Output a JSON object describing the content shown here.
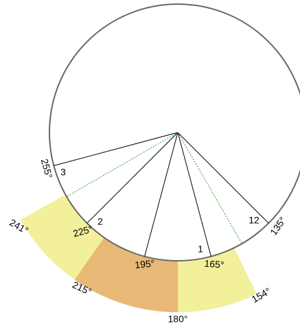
{
  "radials": [
    {
      "number": "3",
      "angle": "255°"
    },
    {
      "number": "2",
      "angle": "225°"
    },
    {
      "angle": "195°"
    },
    {
      "number": "1",
      "angle": "165°"
    },
    {
      "number": "12",
      "angle": "135°"
    }
  ],
  "sectors": [
    {
      "from": "241°",
      "to": "215°"
    },
    {
      "to": "180°"
    },
    {
      "to": "154°"
    }
  ]
}
